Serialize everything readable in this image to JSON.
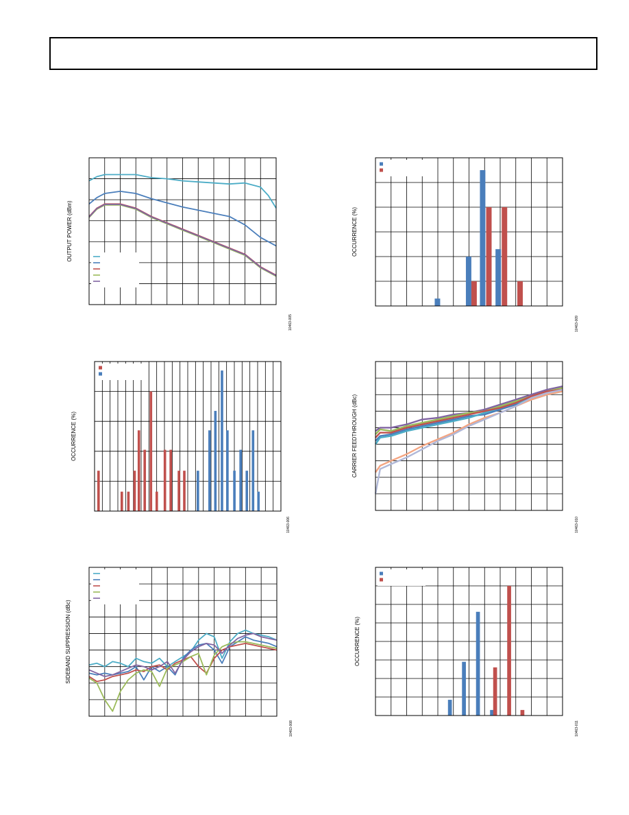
{
  "page": {
    "header_text": ""
  },
  "colors": {
    "blue": "#4a7ebb",
    "red": "#c0504d",
    "green": "#9bbb59",
    "purple": "#8064a2",
    "cyan": "#4bacc6",
    "grid": "#000000"
  },
  "chart_data": [
    {
      "id": "c1",
      "type": "line",
      "ylabel": "OUTPUT POWER (dBm)",
      "figure_id": "10463-005",
      "legend": {
        "placement": "bottom-left",
        "entries": 5
      },
      "grid": {
        "cols": 12,
        "rows": 7
      },
      "xlim": [
        0,
        12
      ],
      "ylim": [
        0,
        7
      ],
      "series": [
        {
          "color": "cyan",
          "x": [
            0,
            0.5,
            1,
            2,
            3,
            4,
            5,
            6,
            7,
            8,
            9,
            10,
            10.5,
            11,
            11.5,
            12
          ],
          "y": [
            5.9,
            6.1,
            6.2,
            6.2,
            6.2,
            6.05,
            6.0,
            5.9,
            5.85,
            5.8,
            5.75,
            5.8,
            5.7,
            5.6,
            5.2,
            4.6
          ]
        },
        {
          "color": "blue",
          "x": [
            0,
            0.5,
            1,
            2,
            3,
            4,
            5,
            6,
            7,
            8,
            9,
            10,
            11,
            12
          ],
          "y": [
            4.8,
            5.1,
            5.3,
            5.4,
            5.3,
            5.05,
            4.85,
            4.65,
            4.5,
            4.35,
            4.2,
            3.8,
            3.2,
            2.8
          ]
        },
        {
          "color": "red",
          "x": [
            0,
            0.5,
            1,
            2,
            3,
            4,
            5,
            6,
            7,
            8,
            9,
            10,
            11,
            12
          ],
          "y": [
            4.2,
            4.6,
            4.8,
            4.8,
            4.6,
            4.2,
            3.9,
            3.6,
            3.3,
            3.0,
            2.7,
            2.4,
            1.8,
            1.4
          ]
        },
        {
          "color": "green",
          "x": [
            0,
            0.5,
            1,
            2,
            3,
            4,
            5,
            6,
            7,
            8,
            9,
            10,
            11,
            12
          ],
          "y": [
            4.15,
            4.55,
            4.75,
            4.75,
            4.55,
            4.15,
            3.85,
            3.55,
            3.25,
            2.95,
            2.65,
            2.35,
            1.75,
            1.35
          ]
        },
        {
          "color": "purple",
          "x": [
            0,
            0.5,
            1,
            2,
            3,
            4,
            5,
            6,
            7,
            8,
            9,
            10,
            11,
            12
          ],
          "y": [
            4.18,
            4.58,
            4.78,
            4.78,
            4.58,
            4.18,
            3.88,
            3.58,
            3.28,
            2.98,
            2.68,
            2.38,
            1.78,
            1.38
          ]
        }
      ]
    },
    {
      "id": "c2",
      "type": "bar",
      "ylabel": "OCCURRENCE (%)",
      "figure_id": "10463-009",
      "legend": {
        "placement": "top-left",
        "entries": 2
      },
      "grid": {
        "cols": 12,
        "rows": 6
      },
      "xlim": [
        0,
        12
      ],
      "ylim": [
        0,
        6
      ],
      "bar_width": 0.35,
      "series": [
        {
          "color": "blue",
          "bars": [
            [
              3.8,
              0.3
            ],
            [
              5.8,
              2.0
            ],
            [
              6.7,
              5.5
            ],
            [
              7.7,
              2.3
            ]
          ]
        },
        {
          "color": "red",
          "bars": [
            [
              6.15,
              1.0
            ],
            [
              7.1,
              4.0
            ],
            [
              8.1,
              4.0
            ],
            [
              9.1,
              1.0
            ]
          ]
        }
      ]
    },
    {
      "id": "c3",
      "type": "bar",
      "ylabel": "OCCURRENCE (%)",
      "figure_id": "10463-006",
      "legend": {
        "placement": "top-left",
        "entries": 2
      },
      "grid": {
        "cols": 24,
        "rows": 5
      },
      "xlim": [
        0,
        24
      ],
      "ylim": [
        0,
        5
      ],
      "bar_width": 0.32,
      "series": [
        {
          "color": "red",
          "bars": [
            [
              0.35,
              1.35
            ],
            [
              3.35,
              0.65
            ],
            [
              4.2,
              0.65
            ],
            [
              5.0,
              1.35
            ],
            [
              5.55,
              2.7
            ],
            [
              6.3,
              2.05
            ],
            [
              7.1,
              4.0
            ],
            [
              7.85,
              0.65
            ],
            [
              8.9,
              2.05
            ],
            [
              9.65,
              2.05
            ],
            [
              10.7,
              1.35
            ],
            [
              11.4,
              1.35
            ]
          ]
        },
        {
          "color": "blue",
          "bars": [
            [
              13.15,
              1.35
            ],
            [
              14.65,
              2.7
            ],
            [
              15.4,
              3.35
            ],
            [
              16.25,
              4.7
            ],
            [
              16.95,
              2.7
            ],
            [
              17.85,
              1.35
            ],
            [
              18.65,
              2.05
            ],
            [
              19.45,
              1.35
            ],
            [
              20.25,
              2.7
            ],
            [
              20.95,
              0.65
            ]
          ]
        }
      ]
    },
    {
      "id": "c4",
      "type": "line",
      "ylabel": "CARRIER FEEDTHROUGH (dBc)",
      "figure_id": "10463-010",
      "grid": {
        "cols": 12,
        "rows": 9
      },
      "xlim": [
        0,
        12
      ],
      "ylim": [
        0,
        9
      ],
      "series": [
        {
          "color": "purple",
          "x": [
            0,
            0.3,
            1,
            2,
            3,
            4,
            5,
            6,
            7,
            8,
            9,
            10,
            11,
            12
          ],
          "y": [
            4.8,
            5.0,
            5.0,
            5.2,
            5.5,
            5.6,
            5.8,
            5.9,
            6.1,
            6.4,
            6.7,
            7.0,
            7.3,
            7.5
          ]
        },
        {
          "color": "green",
          "x": [
            0,
            0.3,
            1,
            2,
            3,
            4,
            5,
            6,
            7,
            8,
            9,
            10,
            11,
            12
          ],
          "y": [
            4.6,
            4.9,
            4.8,
            5.1,
            5.3,
            5.5,
            5.7,
            5.9,
            6.0,
            6.3,
            6.6,
            6.9,
            7.2,
            7.4
          ]
        },
        {
          "color": "blue",
          "x": [
            0,
            0.3,
            1,
            2,
            3,
            4,
            5,
            6,
            7,
            8,
            9,
            10,
            11,
            12
          ],
          "y": [
            4.2,
            4.5,
            4.6,
            4.9,
            5.1,
            5.3,
            5.5,
            5.7,
            5.8,
            6.1,
            6.4,
            6.8,
            7.1,
            7.3
          ]
        },
        {
          "color": "cyan",
          "x": [
            0,
            0.3,
            1,
            2,
            3,
            4,
            5,
            6,
            7,
            8,
            9,
            10,
            11,
            12
          ],
          "y": [
            4.0,
            4.4,
            4.5,
            4.8,
            5.0,
            5.2,
            5.4,
            5.6,
            5.9,
            6.2,
            6.5,
            6.7,
            7.0,
            7.2
          ]
        },
        {
          "color": "red",
          "x": [
            0,
            0.3,
            1,
            2,
            3,
            4,
            5,
            6,
            7,
            8,
            9,
            10,
            11,
            12
          ],
          "y": [
            4.4,
            4.7,
            4.7,
            5.0,
            5.2,
            5.4,
            5.6,
            5.8,
            6.0,
            6.2,
            6.5,
            6.9,
            7.2,
            7.3
          ]
        },
        {
          "color": "peach",
          "x": [
            0,
            0.3,
            1,
            2,
            3,
            4,
            5,
            6,
            7,
            8,
            9,
            10,
            11,
            12
          ],
          "y": [
            2.3,
            2.7,
            3.0,
            3.4,
            3.9,
            4.3,
            4.7,
            5.2,
            5.6,
            5.9,
            6.3,
            6.7,
            7.0,
            7.2
          ]
        },
        {
          "color": "lavender",
          "x": [
            0,
            0.3,
            1,
            2,
            3,
            4,
            5,
            6,
            7,
            8,
            9,
            10,
            11,
            12
          ],
          "y": [
            1.0,
            2.5,
            2.8,
            3.2,
            3.7,
            4.2,
            4.6,
            5.1,
            5.5,
            5.9,
            6.3,
            6.8,
            7.1,
            7.3
          ]
        }
      ]
    },
    {
      "id": "c5",
      "type": "line",
      "ylabel": "SIDEBAND SUPPRESSION (dBc)",
      "figure_id": "10463-008",
      "legend": {
        "placement": "top-left",
        "entries": 5
      },
      "grid": {
        "cols": 12,
        "rows": 9
      },
      "xlim": [
        0,
        12
      ],
      "ylim": [
        0,
        9
      ],
      "series": [
        {
          "color": "cyan",
          "x": [
            0,
            0.5,
            1,
            1.5,
            2,
            2.5,
            3,
            3.5,
            4,
            4.5,
            5,
            5.5,
            6,
            6.5,
            7,
            7.5,
            8,
            8.5,
            9,
            9.5,
            10,
            10.5,
            11,
            11.5,
            12
          ],
          "y": [
            3.1,
            3.2,
            3.0,
            3.3,
            3.2,
            3.0,
            3.5,
            3.3,
            3.2,
            3.5,
            3.0,
            3.3,
            3.6,
            3.9,
            4.6,
            5.0,
            4.8,
            3.5,
            4.5,
            5.0,
            5.2,
            5.0,
            4.9,
            4.8,
            4.6
          ]
        },
        {
          "color": "blue",
          "x": [
            0,
            0.5,
            1,
            1.5,
            2,
            2.5,
            3,
            3.5,
            4,
            4.5,
            5,
            5.5,
            6,
            6.5,
            7,
            7.5,
            8,
            8.5,
            9,
            9.5,
            10,
            10.5,
            11,
            11.5,
            12
          ],
          "y": [
            2.6,
            2.5,
            2.6,
            2.5,
            2.6,
            2.7,
            3.0,
            2.2,
            3.0,
            2.7,
            3.0,
            2.5,
            3.5,
            4.0,
            4.3,
            4.4,
            4.0,
            3.2,
            4.2,
            4.5,
            4.8,
            4.6,
            4.5,
            4.4,
            4.2
          ]
        },
        {
          "color": "red",
          "x": [
            0,
            0.5,
            1,
            1.5,
            2,
            2.5,
            3,
            3.5,
            4,
            4.5,
            5,
            5.5,
            6,
            6.5,
            7,
            7.5,
            8,
            8.5,
            9,
            9.5,
            10,
            10.5,
            11,
            11.5,
            12
          ],
          "y": [
            2.4,
            2.1,
            2.2,
            2.4,
            2.5,
            2.6,
            2.8,
            2.7,
            3.0,
            3.1,
            2.8,
            3.2,
            3.4,
            3.6,
            3.0,
            2.6,
            3.5,
            4.0,
            4.2,
            4.3,
            4.4,
            4.3,
            4.2,
            4.1,
            4.0
          ]
        },
        {
          "color": "green",
          "x": [
            0,
            0.5,
            1,
            1.5,
            2,
            2.5,
            3,
            3.5,
            4,
            4.5,
            5,
            5.5,
            6,
            6.5,
            7,
            7.5,
            8,
            8.5,
            9,
            9.5,
            10,
            10.5,
            11,
            11.5,
            12
          ],
          "y": [
            2.3,
            2.0,
            1.0,
            0.3,
            1.5,
            2.2,
            2.6,
            2.8,
            2.7,
            1.8,
            2.9,
            3.1,
            3.3,
            3.6,
            3.8,
            2.5,
            3.7,
            4.2,
            4.4,
            4.5,
            4.5,
            4.4,
            4.3,
            4.2,
            4.1
          ]
        },
        {
          "color": "purple",
          "x": [
            0,
            0.5,
            1,
            1.5,
            2,
            2.5,
            3,
            3.5,
            4,
            4.5,
            5,
            5.5,
            6,
            6.5,
            7,
            7.5,
            8,
            8.5,
            9,
            9.5,
            10,
            10.5,
            11,
            11.5,
            12
          ],
          "y": [
            2.8,
            2.6,
            2.4,
            2.5,
            2.7,
            2.9,
            3.1,
            3.0,
            2.8,
            3.0,
            3.3,
            2.6,
            3.4,
            3.9,
            4.2,
            4.4,
            4.3,
            3.8,
            4.3,
            4.7,
            4.9,
            5.0,
            4.8,
            4.7,
            4.6
          ]
        }
      ]
    },
    {
      "id": "c6",
      "type": "bar",
      "ylabel": "OCCURRENCE (%)",
      "figure_id": "10463-011",
      "legend": {
        "placement": "top-left",
        "entries": 2
      },
      "grid": {
        "cols": 12,
        "rows": 8
      },
      "xlim": [
        0,
        12
      ],
      "ylim": [
        0,
        8
      ],
      "bar_width": 0.25,
      "series": [
        {
          "color": "blue",
          "bars": [
            [
              4.65,
              0.85
            ],
            [
              5.55,
              2.9
            ],
            [
              6.45,
              5.6
            ],
            [
              7.35,
              0.3
            ]
          ]
        },
        {
          "color": "red",
          "bars": [
            [
              7.55,
              2.6
            ],
            [
              8.45,
              7.0
            ],
            [
              9.3,
              0.3
            ]
          ]
        }
      ]
    }
  ]
}
